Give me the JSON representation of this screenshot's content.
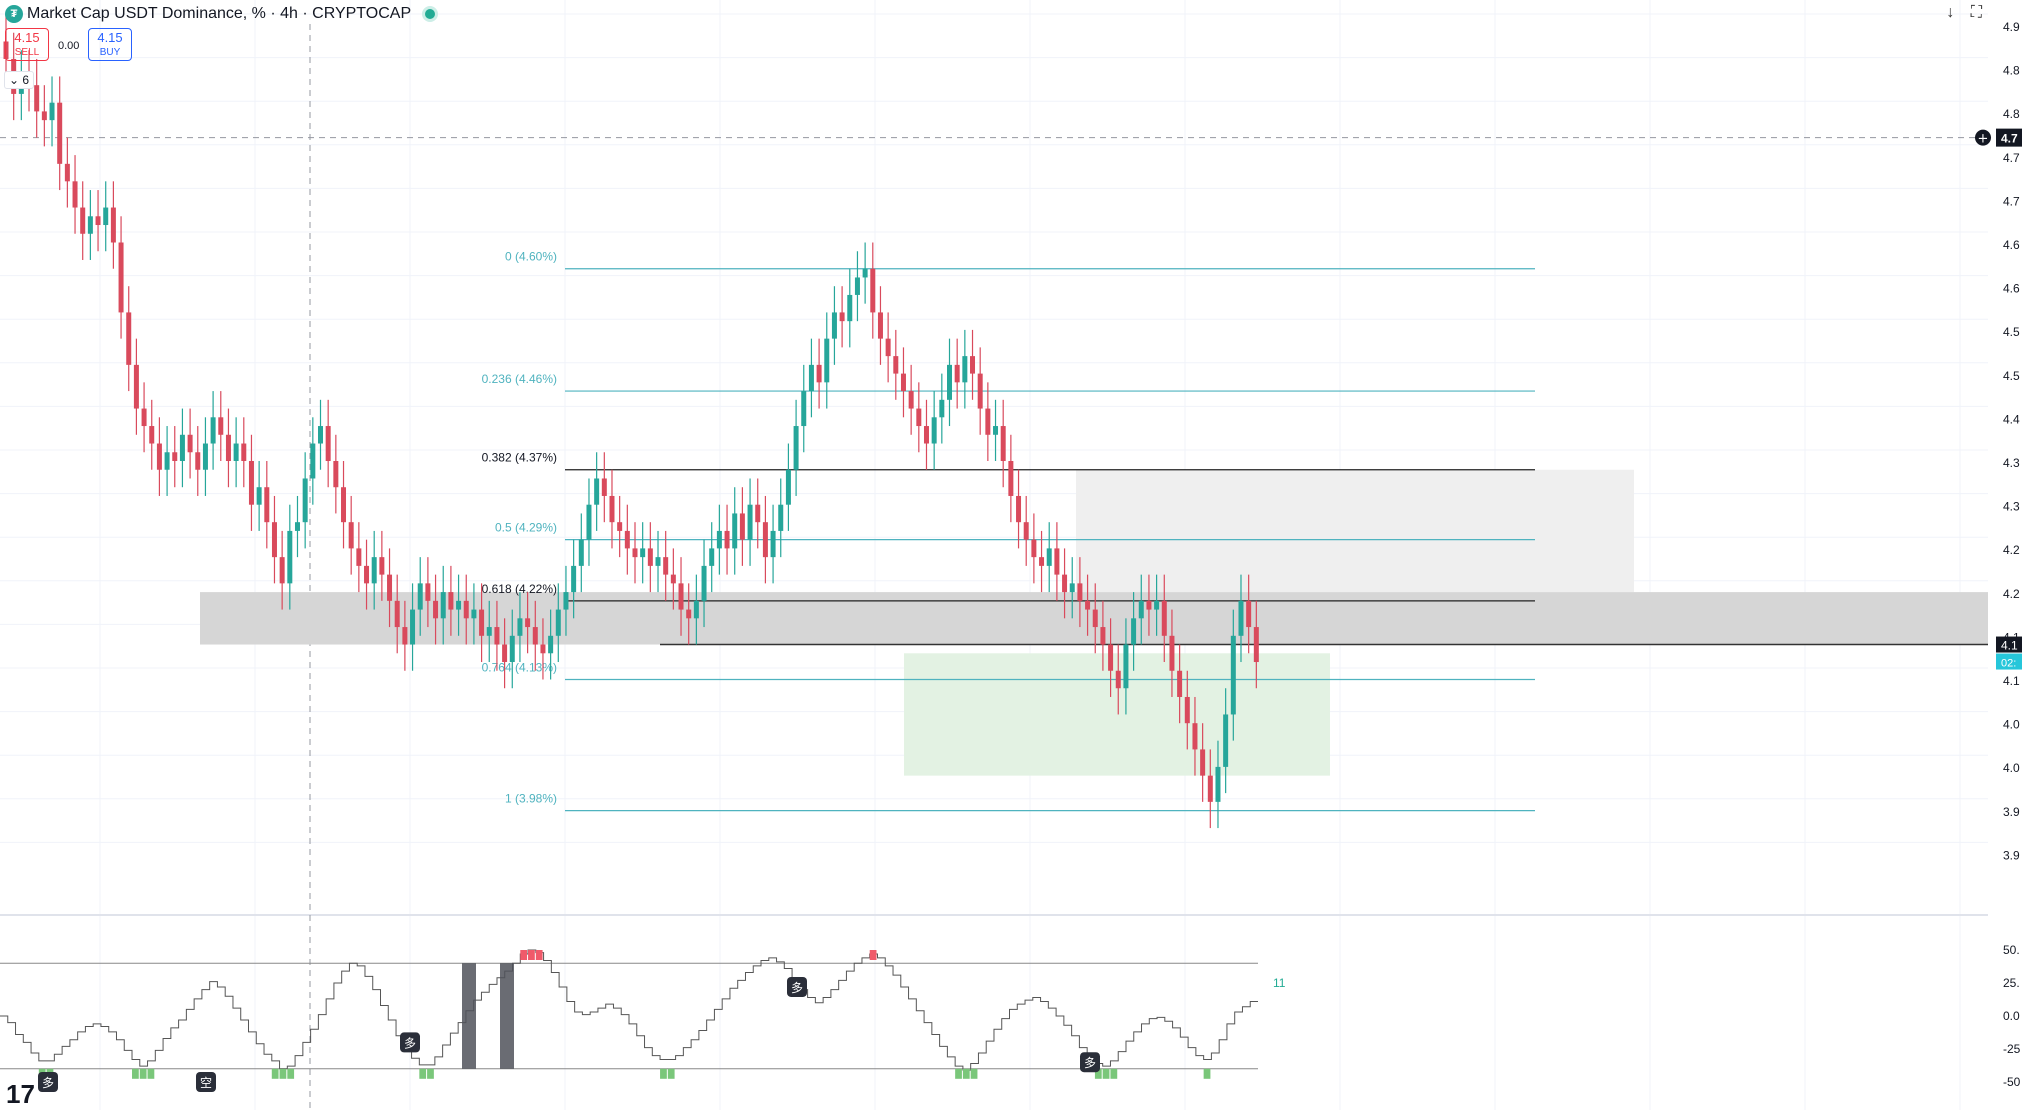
{
  "header": {
    "title": "Market Cap USDT Dominance, % · 4h · CRYPTOCAP",
    "sell_price": "4.15",
    "sell_label": "SELL",
    "buy_price": "4.15",
    "buy_label": "BUY",
    "spread": "0.00",
    "indicator_count": "6"
  },
  "colors": {
    "up": "#26a69a",
    "down": "#d94a5c",
    "fib": "#4fb3bf",
    "fib_black": "#222222",
    "zone_gray": "#d6d6d6",
    "zone_light": "#efefef",
    "zone_green": "#e3f2e3"
  },
  "icons": {
    "logo": "tether-logo-icon",
    "download": "download-arrow-icon",
    "fullscreen": "fullscreen-icon",
    "add": "plus-circle-icon",
    "tv": "tradingview-logo-icon"
  },
  "chart_data": [
    {
      "type": "candlestick",
      "symbol": "Market Cap USDT Dominance, %",
      "timeframe": "4h",
      "y_axis_ticks": [
        "4.9",
        "4.8",
        "4.8",
        "4.7",
        "4.7",
        "4.6",
        "4.6",
        "4.5",
        "4.5",
        "4.4",
        "4.3",
        "4.3",
        "4.2",
        "4.2",
        "4.1",
        "4.1",
        "4.0",
        "4.0",
        "3.9",
        "3.9"
      ],
      "last_price_label": "4.1",
      "countdown_label": "02:",
      "crosshair_price_label": "4.7",
      "fib_levels": [
        {
          "label": "0 (4.60%)",
          "value": 4.6
        },
        {
          "label": "0.236 (4.46%)",
          "value": 4.46
        },
        {
          "label": "0.382 (4.37%)",
          "value": 4.37
        },
        {
          "label": "0.5 (4.29%)",
          "value": 4.29
        },
        {
          "label": "0.618 (4.22%)",
          "value": 4.22
        },
        {
          "label": "0.764 (4.13%)",
          "value": 4.13
        },
        {
          "label": "1 (3.98%)",
          "value": 3.98
        }
      ],
      "zones": [
        {
          "name": "resistance-gray",
          "y": [
            4.17,
            4.23
          ]
        },
        {
          "name": "supply-light",
          "y": [
            4.23,
            4.37
          ]
        },
        {
          "name": "demand-green",
          "y": [
            4.02,
            4.16
          ]
        }
      ],
      "closes": [
        4.84,
        4.8,
        4.82,
        4.81,
        4.78,
        4.77,
        4.79,
        4.72,
        4.7,
        4.67,
        4.64,
        4.66,
        4.65,
        4.67,
        4.63,
        4.55,
        4.49,
        4.44,
        4.42,
        4.4,
        4.37,
        4.39,
        4.38,
        4.41,
        4.39,
        4.37,
        4.4,
        4.43,
        4.41,
        4.38,
        4.4,
        4.38,
        4.33,
        4.35,
        4.31,
        4.27,
        4.24,
        4.3,
        4.31,
        4.36,
        4.4,
        4.42,
        4.38,
        4.35,
        4.31,
        4.28,
        4.26,
        4.24,
        4.27,
        4.25,
        4.22,
        4.19,
        4.17,
        4.21,
        4.24,
        4.22,
        4.2,
        4.23,
        4.21,
        4.22,
        4.2,
        4.21,
        4.18,
        4.19,
        4.17,
        4.15,
        4.18,
        4.2,
        4.19,
        4.17,
        4.16,
        4.18,
        4.21,
        4.23,
        4.26,
        4.29,
        4.33,
        4.36,
        4.34,
        4.31,
        4.3,
        4.28,
        4.27,
        4.28,
        4.26,
        4.27,
        4.25,
        4.24,
        4.21,
        4.2,
        4.22,
        4.26,
        4.28,
        4.3,
        4.28,
        4.32,
        4.29,
        4.33,
        4.31,
        4.27,
        4.3,
        4.33,
        4.37,
        4.42,
        4.46,
        4.49,
        4.47,
        4.52,
        4.55,
        4.54,
        4.57,
        4.59,
        4.6,
        4.55,
        4.52,
        4.5,
        4.48,
        4.46,
        4.44,
        4.42,
        4.4,
        4.43,
        4.45,
        4.49,
        4.47,
        4.5,
        4.48,
        4.44,
        4.41,
        4.42,
        4.38,
        4.34,
        4.31,
        4.29,
        4.27,
        4.26,
        4.28,
        4.25,
        4.23,
        4.24,
        4.22,
        4.21,
        4.19,
        4.17,
        4.14,
        4.12,
        4.17,
        4.2,
        4.22,
        4.21,
        4.22,
        4.18,
        4.14,
        4.11,
        4.08,
        4.05,
        4.02,
        3.99,
        4.03,
        4.09,
        4.18,
        4.22,
        4.19,
        4.15
      ]
    },
    {
      "type": "line",
      "name": "oscillator",
      "y_axis_ticks": [
        "50.",
        "25.",
        "0.0",
        "-25",
        "-50"
      ],
      "ylim": [
        -50,
        50
      ],
      "last_value_label": "11",
      "markers": [
        "多",
        "空",
        "多",
        "多",
        "多"
      ],
      "values": [
        0,
        -5,
        -14,
        -20,
        -28,
        -34,
        -34,
        -29,
        -23,
        -18,
        -12,
        -8,
        -6,
        -8,
        -12,
        -18,
        -26,
        -33,
        -38,
        -34,
        -26,
        -17,
        -9,
        -3,
        5,
        13,
        20,
        26,
        22,
        15,
        6,
        -3,
        -12,
        -21,
        -29,
        -34,
        -40,
        -38,
        -30,
        -20,
        -10,
        1,
        13,
        25,
        34,
        40,
        38,
        30,
        20,
        8,
        -3,
        -15,
        -25,
        -32,
        -37,
        -37,
        -31,
        -22,
        -13,
        -5,
        4,
        12,
        18,
        24,
        29,
        34,
        40,
        47,
        50,
        48,
        42,
        33,
        22,
        11,
        3,
        1,
        3,
        6,
        9,
        6,
        1,
        -6,
        -15,
        -24,
        -30,
        -33,
        -33,
        -30,
        -24,
        -18,
        -11,
        -3,
        5,
        13,
        21,
        27,
        33,
        38,
        42,
        44,
        41,
        36,
        28,
        20,
        14,
        10,
        14,
        20,
        27,
        34,
        40,
        44,
        47,
        44,
        38,
        31,
        22,
        13,
        4,
        -5,
        -14,
        -23,
        -31,
        -38,
        -41,
        -36,
        -28,
        -19,
        -10,
        -2,
        5,
        9,
        12,
        14,
        11,
        6,
        0,
        -7,
        -15,
        -24,
        -31,
        -36,
        -38,
        -34,
        -27,
        -19,
        -12,
        -6,
        -2,
        -1,
        -4,
        -9,
        -16,
        -24,
        -30,
        -33,
        -28,
        -18,
        -6,
        3,
        7,
        11
      ]
    }
  ]
}
